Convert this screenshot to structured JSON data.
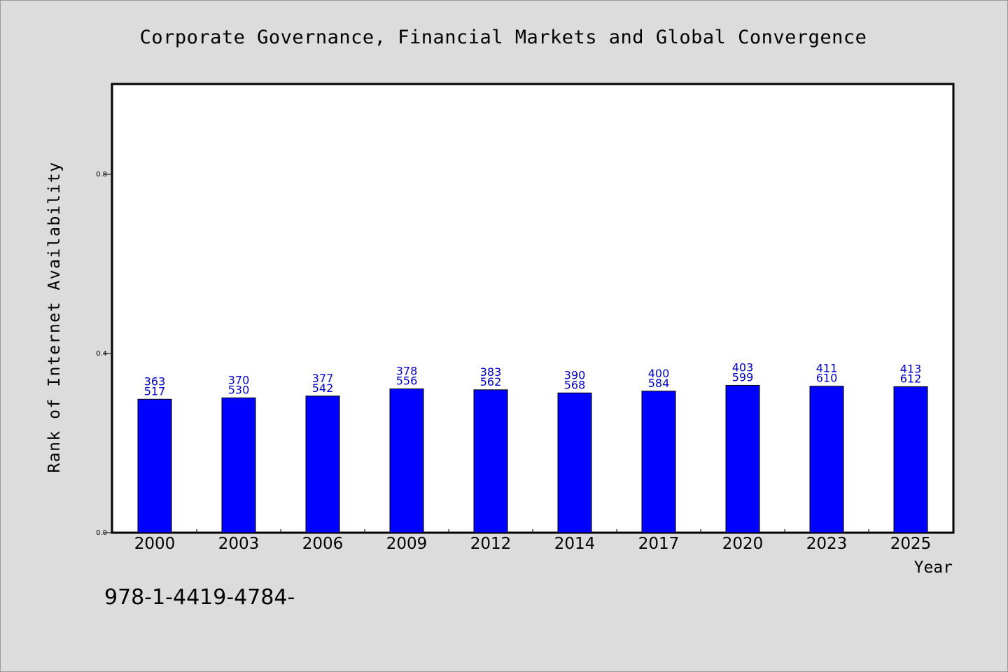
{
  "title": "Corporate Governance, Financial Markets and Global Convergence",
  "footnote": "978-1-4419-4784-",
  "chart_data": {
    "type": "bar",
    "title": "Corporate Governance, Financial Markets and Global Convergence",
    "xlabel": "Year",
    "ylabel": "Rank of Internet Availability",
    "categories": [
      "2000",
      "2003",
      "2006",
      "2009",
      "2012",
      "2014",
      "2017",
      "2020",
      "2023",
      "2025"
    ],
    "values": [
      0.298,
      0.301,
      0.305,
      0.321,
      0.319,
      0.312,
      0.316,
      0.329,
      0.327,
      0.326
    ],
    "data_labels_top": [
      "363",
      "370",
      "377",
      "378",
      "383",
      "390",
      "400",
      "403",
      "411",
      "413"
    ],
    "data_labels_bottom": [
      "517",
      "530",
      "542",
      "556",
      "562",
      "568",
      "584",
      "599",
      "610",
      "612"
    ],
    "yticks": [
      "0.0",
      "0.4",
      "0.8"
    ],
    "ylim": [
      0,
      1.0
    ],
    "bar_color": "#0000ff",
    "label_color": "#0000cc",
    "grid": false,
    "legend": "none"
  }
}
